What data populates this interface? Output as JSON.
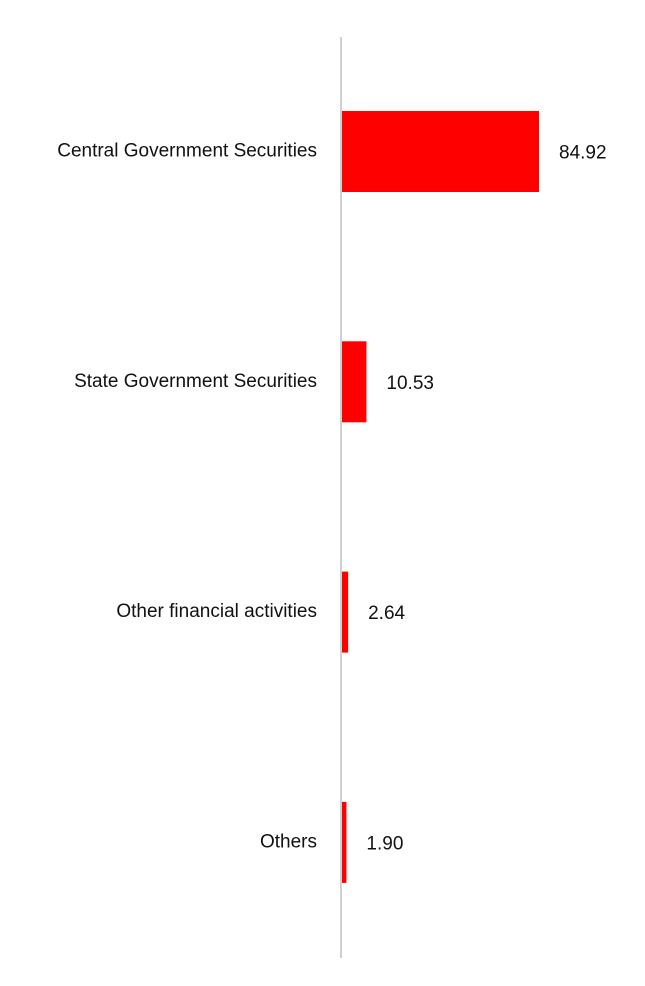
{
  "chart_data": {
    "type": "bar",
    "orientation": "horizontal",
    "categories": [
      "Central Government Securities",
      "State Government Securities",
      "Other financial activities",
      "Others"
    ],
    "values": [
      84.92,
      10.53,
      2.64,
      1.9
    ],
    "value_labels": [
      "84.92",
      "10.53",
      "2.64",
      "1.90"
    ],
    "title": "",
    "xlabel": "",
    "ylabel": "",
    "xlim": [
      0,
      84.92
    ],
    "grid": false,
    "legend": "none",
    "colors": {
      "bar": "#ff0000",
      "axis": "#d0d0d0",
      "text": "#111111"
    }
  }
}
